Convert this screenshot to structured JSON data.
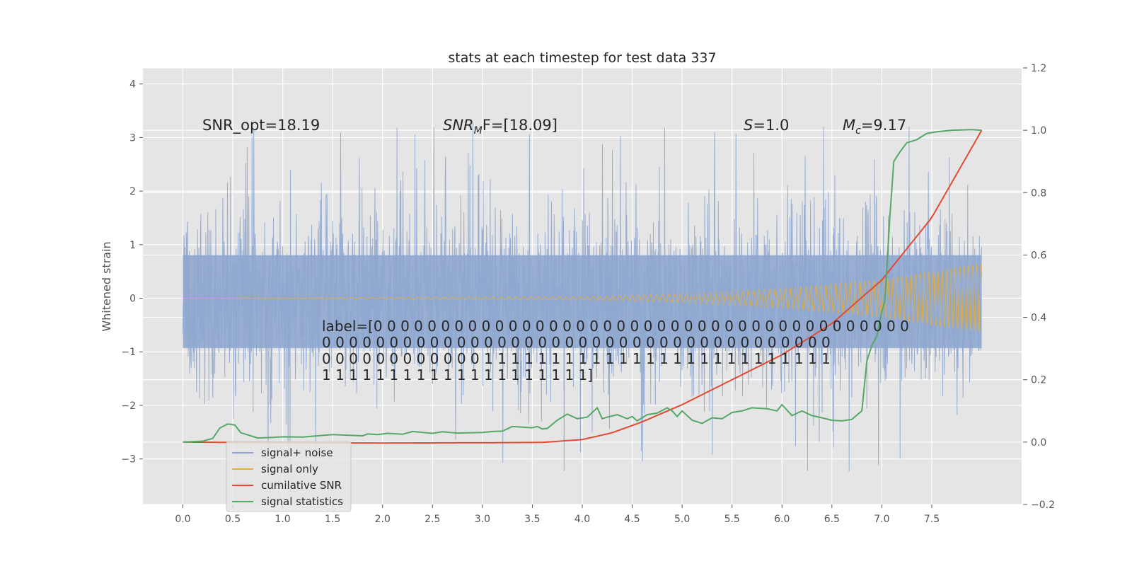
{
  "chart_data": {
    "type": "line",
    "title": "stats at each timestep for test data 337",
    "xlabel": "",
    "ylabel": "Whitened strain",
    "ylabel_right": "",
    "x_ticks": [
      "0.0",
      "0.5",
      "1.0",
      "1.5",
      "2.0",
      "2.5",
      "3.0",
      "3.5",
      "4.0",
      "4.5",
      "5.0",
      "5.5",
      "6.0",
      "6.5",
      "7.0",
      "7.5"
    ],
    "y_ticks": [
      "−3",
      "−2",
      "−1",
      "0",
      "1",
      "2",
      "3",
      "4"
    ],
    "y2_ticks": [
      "−0.2",
      "0.0",
      "0.2",
      "0.4",
      "0.6",
      "0.8",
      "1.0",
      "1.2"
    ],
    "xlim": [
      -0.4,
      8.4
    ],
    "ylim": [
      -3.85,
      4.3
    ],
    "y2lim": [
      -0.2,
      1.2
    ],
    "grid": true,
    "legend_position": "lower-left",
    "annotations": {
      "snr_opt": "SNR_opt=18.19",
      "snr_mf_main": "SNR",
      "snr_mf_sub": "M",
      "snr_mf_rest": "F=[18.09]",
      "s_var": "S",
      "s_rest": "=1.0",
      "mc_main": "M",
      "mc_sub": "c",
      "mc_rest": "=9.17",
      "label_lines": [
        "label=[0 0 0 0 0 0 0 0 0 0 0 0 0 0 0 0 0 0 0 0 0 0 0 0 0 0 0 0 0 0 0 0 0 0 0 0 0 0 0 0",
        " 0 0 0 0 0 0 0 0 0 0 0 0 0 0 0 0 0 0 0 0 0 0 0 0 0 0 0 0 0 0 0 0 0 0 0 0 0 0",
        " 0 0 0 0 0 0 0 0 0 0 0 0 1 1 1 1 1 1 1 1 1 1 1 1 1 1 1 1 1 1 1 1 1 1 1 1 1 1",
        " 1 1 1 1 1 1 1 1 1 1 1 1 1 1 1 1 1 1 1 1]"
      ]
    },
    "series": [
      {
        "name": "signal+ noise",
        "color": "#8fa7cf",
        "axis": "left",
        "description": "dense noisy whitened strain from x=0 to 8, roughly within -2 to 2 with spikes up to 4.0 and down to -3.5",
        "envelope_upper": 1.3,
        "envelope_lower": -1.5,
        "max": 4.0,
        "min": -3.5
      },
      {
        "name": "signal only",
        "color": "#e5ae38",
        "axis": "left",
        "description": "chirp signal with amplitude ~0 until x≈4 growing to ~0.65 at x=8",
        "amplitude_x": [
          0,
          4.0,
          5.0,
          6.0,
          7.0,
          7.5,
          8.0
        ],
        "amplitude": [
          0.0,
          0.03,
          0.08,
          0.18,
          0.35,
          0.5,
          0.65
        ]
      },
      {
        "name": "cumilative SNR",
        "color": "#e24a33",
        "axis": "right",
        "x": [
          0.0,
          1.0,
          2.0,
          3.0,
          3.6,
          4.0,
          4.3,
          4.6,
          5.0,
          5.5,
          6.0,
          6.5,
          7.0,
          7.5,
          8.0
        ],
        "y": [
          0.0,
          -0.002,
          -0.003,
          -0.002,
          -0.001,
          0.008,
          0.03,
          0.065,
          0.12,
          0.2,
          0.28,
          0.38,
          0.52,
          0.72,
          1.0
        ]
      },
      {
        "name": "signal statistics",
        "color": "#55a868",
        "axis": "right",
        "x": [
          0.0,
          0.2,
          0.3,
          0.37,
          0.45,
          0.52,
          0.58,
          0.75,
          0.9,
          1.0,
          1.2,
          1.5,
          1.8,
          1.85,
          1.95,
          2.05,
          2.2,
          2.3,
          2.5,
          2.6,
          2.75,
          2.9,
          3.0,
          3.1,
          3.2,
          3.3,
          3.4,
          3.5,
          3.55,
          3.6,
          3.65,
          3.75,
          3.85,
          3.95,
          4.05,
          4.15,
          4.2,
          4.25,
          4.35,
          4.45,
          4.5,
          4.55,
          4.65,
          4.75,
          4.85,
          4.9,
          4.95,
          5.0,
          5.1,
          5.2,
          5.3,
          5.4,
          5.5,
          5.6,
          5.7,
          5.85,
          5.95,
          6.0,
          6.1,
          6.2,
          6.3,
          6.4,
          6.5,
          6.6,
          6.7,
          6.8,
          6.85,
          6.9,
          6.95,
          7.0,
          7.03,
          7.08,
          7.12,
          7.18,
          7.25,
          7.35,
          7.45,
          7.55,
          7.7,
          7.9,
          8.0
        ],
        "y": [
          0.0,
          0.003,
          0.012,
          0.045,
          0.058,
          0.055,
          0.03,
          0.013,
          0.015,
          0.017,
          0.016,
          0.024,
          0.02,
          0.026,
          0.024,
          0.028,
          0.025,
          0.034,
          0.028,
          0.033,
          0.029,
          0.03,
          0.031,
          0.034,
          0.035,
          0.05,
          0.048,
          0.046,
          0.05,
          0.042,
          0.044,
          0.07,
          0.09,
          0.075,
          0.08,
          0.11,
          0.075,
          0.08,
          0.088,
          0.075,
          0.082,
          0.068,
          0.088,
          0.093,
          0.11,
          0.1,
          0.082,
          0.1,
          0.07,
          0.06,
          0.078,
          0.075,
          0.095,
          0.1,
          0.11,
          0.107,
          0.1,
          0.12,
          0.085,
          0.1,
          0.085,
          0.078,
          0.07,
          0.068,
          0.073,
          0.1,
          0.26,
          0.31,
          0.34,
          0.42,
          0.45,
          0.72,
          0.9,
          0.93,
          0.96,
          0.97,
          0.99,
          0.995,
          1.0,
          1.002,
          1.0
        ]
      }
    ]
  }
}
